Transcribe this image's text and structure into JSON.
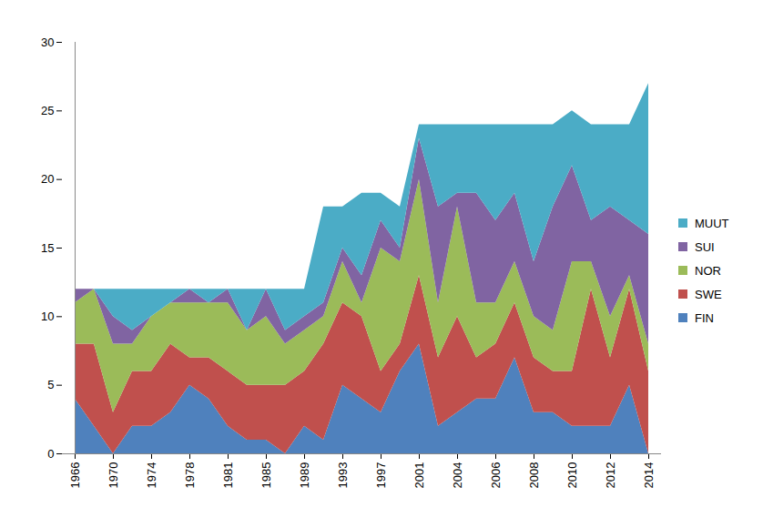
{
  "chart_data": {
    "type": "area",
    "stacked": true,
    "legend": "right",
    "categories": [
      "1966",
      null,
      "1970",
      null,
      "1974",
      null,
      "1978",
      null,
      "1981",
      null,
      "1985",
      null,
      "1989",
      null,
      "1993",
      null,
      "1997",
      null,
      "2001",
      null,
      "2004",
      null,
      "2006",
      null,
      "2008",
      null,
      "2010",
      null,
      "2012",
      null,
      "2014"
    ],
    "series": [
      {
        "name": "FIN",
        "color": "#4f81bd",
        "values": [
          4,
          2,
          0,
          2,
          2,
          3,
          5,
          4,
          2,
          1,
          1,
          0,
          2,
          1,
          5,
          4,
          3,
          6,
          8,
          2,
          3,
          4,
          4,
          7,
          3,
          3,
          2,
          2,
          2,
          5,
          0
        ]
      },
      {
        "name": "SWE",
        "color": "#c0504d",
        "values": [
          4,
          6,
          3,
          4,
          4,
          5,
          2,
          3,
          4,
          4,
          4,
          5,
          4,
          7,
          6,
          6,
          3,
          2,
          5,
          5,
          7,
          3,
          4,
          4,
          4,
          3,
          4,
          10,
          5,
          7,
          6
        ]
      },
      {
        "name": "NOR",
        "color": "#9bbb59",
        "values": [
          3,
          4,
          5,
          2,
          4,
          3,
          4,
          4,
          5,
          4,
          5,
          3,
          3,
          2,
          3,
          1,
          9,
          6,
          7,
          4,
          8,
          4,
          3,
          3,
          3,
          3,
          8,
          2,
          3,
          1,
          2
        ]
      },
      {
        "name": "SUI",
        "color": "#8064a2",
        "values": [
          1,
          0,
          2,
          1,
          0,
          0,
          1,
          0,
          1,
          0,
          2,
          1,
          1,
          1,
          1,
          2,
          2,
          1,
          3,
          7,
          1,
          8,
          6,
          5,
          4,
          9,
          7,
          3,
          8,
          4,
          8
        ]
      },
      {
        "name": "MUUT",
        "color": "#4bacc6",
        "values": [
          0,
          0,
          2,
          3,
          2,
          1,
          0,
          1,
          0,
          3,
          0,
          3,
          2,
          7,
          3,
          6,
          2,
          3,
          1,
          6,
          5,
          5,
          7,
          5,
          10,
          6,
          4,
          7,
          6,
          7,
          11
        ]
      }
    ],
    "ylim": [
      0,
      30
    ],
    "yticks": [
      0,
      5,
      10,
      15,
      20,
      25,
      30
    ]
  }
}
